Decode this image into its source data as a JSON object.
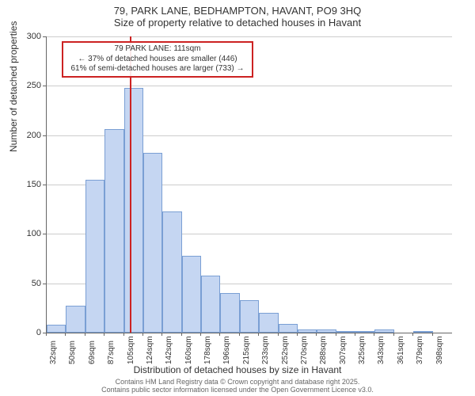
{
  "title": {
    "line1": "79, PARK LANE, BEDHAMPTON, HAVANT, PO9 3HQ",
    "line2": "Size of property relative to detached houses in Havant"
  },
  "chart": {
    "type": "histogram",
    "ylabel": "Number of detached properties",
    "xlabel": "Distribution of detached houses by size in Havant",
    "ylim": [
      0,
      300
    ],
    "ytick_step": 50,
    "background_color": "#ffffff",
    "grid_color": "#cccccc",
    "axis_color": "#666666",
    "bar_fill": "#c5d6f2",
    "bar_border": "#7a9fd4",
    "marker_color": "#cc2222",
    "bar_width_ratio": 1.0,
    "label_fontsize": 12,
    "tick_fontsize": 11,
    "xtick_fontsize": 10,
    "categories": [
      "32sqm",
      "50sqm",
      "69sqm",
      "87sqm",
      "105sqm",
      "124sqm",
      "142sqm",
      "160sqm",
      "178sqm",
      "196sqm",
      "215sqm",
      "233sqm",
      "252sqm",
      "270sqm",
      "288sqm",
      "307sqm",
      "325sqm",
      "343sqm",
      "361sqm",
      "379sqm",
      "398sqm"
    ],
    "values": [
      8,
      27,
      155,
      206,
      248,
      182,
      123,
      78,
      58,
      40,
      33,
      20,
      9,
      3,
      3,
      2,
      2,
      3,
      0,
      2,
      0
    ],
    "marker_value": 111,
    "x_start": 32,
    "x_step": 18.3
  },
  "annotation": {
    "line1": "79 PARK LANE: 111sqm",
    "line2": "← 37% of detached houses are smaller (446)",
    "line3": "61% of semi-detached houses are larger (733) →",
    "border_color": "#cc2222",
    "fontsize": 10
  },
  "footer": {
    "line1": "Contains HM Land Registry data © Crown copyright and database right 2025.",
    "line2": "Contains public sector information licensed under the Open Government Licence v3.0.",
    "color": "#666666",
    "fontsize": 9
  }
}
